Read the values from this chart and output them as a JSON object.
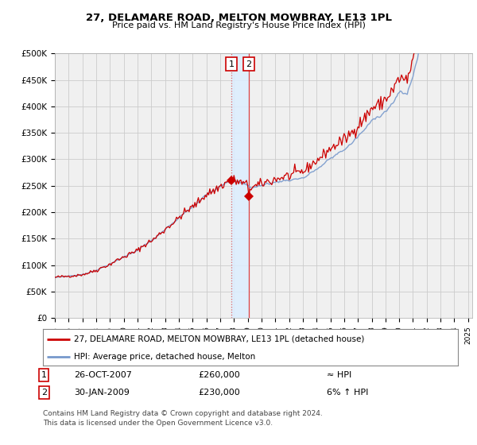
{
  "title": "27, DELAMARE ROAD, MELTON MOWBRAY, LE13 1PL",
  "subtitle": "Price paid vs. HM Land Registry's House Price Index (HPI)",
  "ylim": [
    0,
    500000
  ],
  "xlim_start": 1995.0,
  "xlim_end": 2025.3,
  "sale1_x": 2007.82,
  "sale1_y": 260000,
  "sale2_x": 2009.08,
  "sale2_y": 230000,
  "sale1_date": "26-OCT-2007",
  "sale1_price": "£260,000",
  "sale1_vs_hpi": "≈ HPI",
  "sale2_date": "30-JAN-2009",
  "sale2_price": "£230,000",
  "sale2_vs_hpi": "6% ↑ HPI",
  "legend_line1": "27, DELAMARE ROAD, MELTON MOWBRAY, LE13 1PL (detached house)",
  "legend_line2": "HPI: Average price, detached house, Melton",
  "footer": "Contains HM Land Registry data © Crown copyright and database right 2024.\nThis data is licensed under the Open Government Licence v3.0.",
  "line_color": "#cc0000",
  "hpi_color": "#7799cc",
  "shade_color": "#ddeeff",
  "grid_color": "#cccccc",
  "bg_color": "#f0f0f0"
}
